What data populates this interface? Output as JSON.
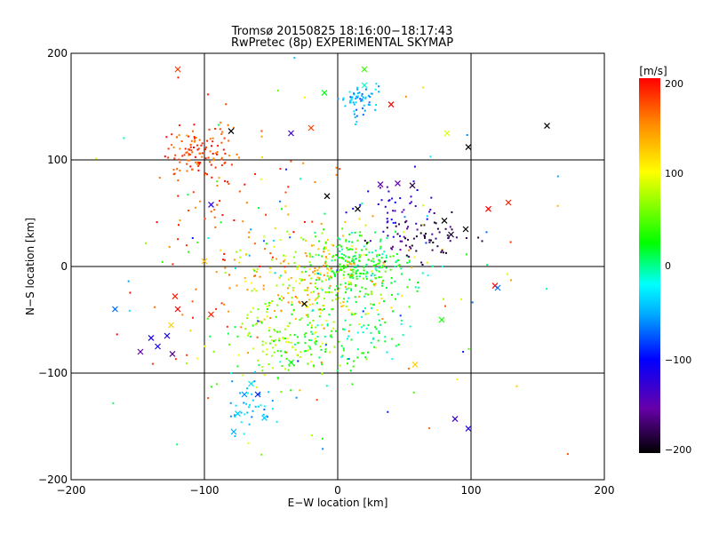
{
  "chart_data": {
    "type": "scatter",
    "title": "Tromsø 20150825 18:16:00−18:17:43",
    "subtitle": "RwPretec (8p) EXPERIMENTAL SKYMAP",
    "xlabel": "E−W location [km]",
    "ylabel": "N−S location [km]",
    "xlim": [
      -200,
      200
    ],
    "ylim": [
      -200,
      200
    ],
    "xticks": [
      "−200",
      "−100",
      "0",
      "100",
      "200"
    ],
    "yticks": [
      "−200",
      "−100",
      "0",
      "100",
      "200"
    ],
    "grid": true,
    "colorbar": {
      "label": "[m/s]",
      "min": -200,
      "max": 200,
      "ticks": [
        "200",
        "100",
        "0",
        "−100",
        "−200"
      ],
      "colormap": [
        "#000000",
        "#6600aa",
        "#0000ff",
        "#00aaff",
        "#00ffff",
        "#00ff00",
        "#ffff00",
        "#ff8800",
        "#ff0000"
      ]
    },
    "clusters": [
      {
        "cx": -105,
        "cy": 105,
        "sx": 14,
        "sy": 16,
        "n": 120,
        "vmin": 150,
        "vmax": 200
      },
      {
        "cx": 15,
        "cy": 155,
        "sx": 7,
        "sy": 8,
        "n": 60,
        "vmin": -80,
        "vmax": -20
      },
      {
        "cx": 15,
        "cy": 0,
        "sx": 20,
        "sy": 15,
        "n": 260,
        "vmin": -10,
        "vmax": 60
      },
      {
        "cx": -20,
        "cy": -15,
        "sx": 28,
        "sy": 25,
        "n": 220,
        "vmin": 60,
        "vmax": 160
      },
      {
        "cx": -40,
        "cy": -70,
        "sx": 25,
        "sy": 20,
        "n": 160,
        "vmin": 10,
        "vmax": 100
      },
      {
        "cx": 65,
        "cy": 25,
        "sx": 18,
        "sy": 10,
        "n": 70,
        "vmin": -200,
        "vmax": -150
      },
      {
        "cx": 45,
        "cy": 50,
        "sx": 15,
        "sy": 15,
        "n": 40,
        "vmin": -150,
        "vmax": -100
      },
      {
        "cx": -65,
        "cy": -130,
        "sx": 10,
        "sy": 12,
        "n": 40,
        "vmin": -70,
        "vmax": -20
      },
      {
        "cx": 10,
        "cy": -60,
        "sx": 20,
        "sy": 25,
        "n": 90,
        "vmin": -20,
        "vmax": 40
      },
      {
        "cx": -80,
        "cy": 20,
        "sx": 40,
        "sy": 60,
        "n": 90,
        "vmin": 140,
        "vmax": 200
      },
      {
        "cx": 0,
        "cy": 0,
        "sx": 90,
        "sy": 90,
        "n": 130,
        "vmin": -100,
        "vmax": 200
      }
    ],
    "crosses": [
      {
        "x": -120,
        "y": 185,
        "v": 180
      },
      {
        "x": -20,
        "y": 130,
        "v": 180
      },
      {
        "x": -35,
        "y": 125,
        "v": -130
      },
      {
        "x": -80,
        "y": 127,
        "v": -200
      },
      {
        "x": -10,
        "y": 163,
        "v": 20
      },
      {
        "x": 20,
        "y": 185,
        "v": 40
      },
      {
        "x": 20,
        "y": 170,
        "v": -10
      },
      {
        "x": 40,
        "y": 152,
        "v": 200
      },
      {
        "x": 82,
        "y": 125,
        "v": 90
      },
      {
        "x": 98,
        "y": 112,
        "v": -200
      },
      {
        "x": 157,
        "y": 132,
        "v": -200
      },
      {
        "x": 32,
        "y": 77,
        "v": -150
      },
      {
        "x": 45,
        "y": 78,
        "v": -150
      },
      {
        "x": 56,
        "y": 76,
        "v": -180
      },
      {
        "x": -8,
        "y": 66,
        "v": -200
      },
      {
        "x": 15,
        "y": 54,
        "v": -200
      },
      {
        "x": 113,
        "y": 54,
        "v": 200
      },
      {
        "x": 128,
        "y": 60,
        "v": 190
      },
      {
        "x": 96,
        "y": 35,
        "v": -200
      },
      {
        "x": 85,
        "y": 30,
        "v": -190
      },
      {
        "x": 80,
        "y": 43,
        "v": -200
      },
      {
        "x": -95,
        "y": 58,
        "v": -120
      },
      {
        "x": -100,
        "y": 5,
        "v": 130
      },
      {
        "x": -122,
        "y": -28,
        "v": 190
      },
      {
        "x": -120,
        "y": -40,
        "v": 200
      },
      {
        "x": -125,
        "y": -55,
        "v": 120
      },
      {
        "x": -167,
        "y": -40,
        "v": -70
      },
      {
        "x": -140,
        "y": -67,
        "v": -110
      },
      {
        "x": -128,
        "y": -65,
        "v": -110
      },
      {
        "x": -135,
        "y": -75,
        "v": -110
      },
      {
        "x": -148,
        "y": -80,
        "v": -150
      },
      {
        "x": -124,
        "y": -82,
        "v": -160
      },
      {
        "x": -95,
        "y": -45,
        "v": 190
      },
      {
        "x": -65,
        "y": -110,
        "v": -30
      },
      {
        "x": -60,
        "y": -120,
        "v": -90
      },
      {
        "x": -70,
        "y": -120,
        "v": -60
      },
      {
        "x": -75,
        "y": -138,
        "v": -40
      },
      {
        "x": -55,
        "y": -142,
        "v": -40
      },
      {
        "x": -78,
        "y": -155,
        "v": -50
      },
      {
        "x": 78,
        "y": -50,
        "v": 30
      },
      {
        "x": 58,
        "y": -92,
        "v": 120
      },
      {
        "x": 88,
        "y": -143,
        "v": -130
      },
      {
        "x": 98,
        "y": -152,
        "v": -120
      },
      {
        "x": 118,
        "y": -18,
        "v": 200
      },
      {
        "x": 120,
        "y": -20,
        "v": -70
      },
      {
        "x": -25,
        "y": -35,
        "v": -200
      },
      {
        "x": -35,
        "y": -90,
        "v": 20
      }
    ]
  }
}
